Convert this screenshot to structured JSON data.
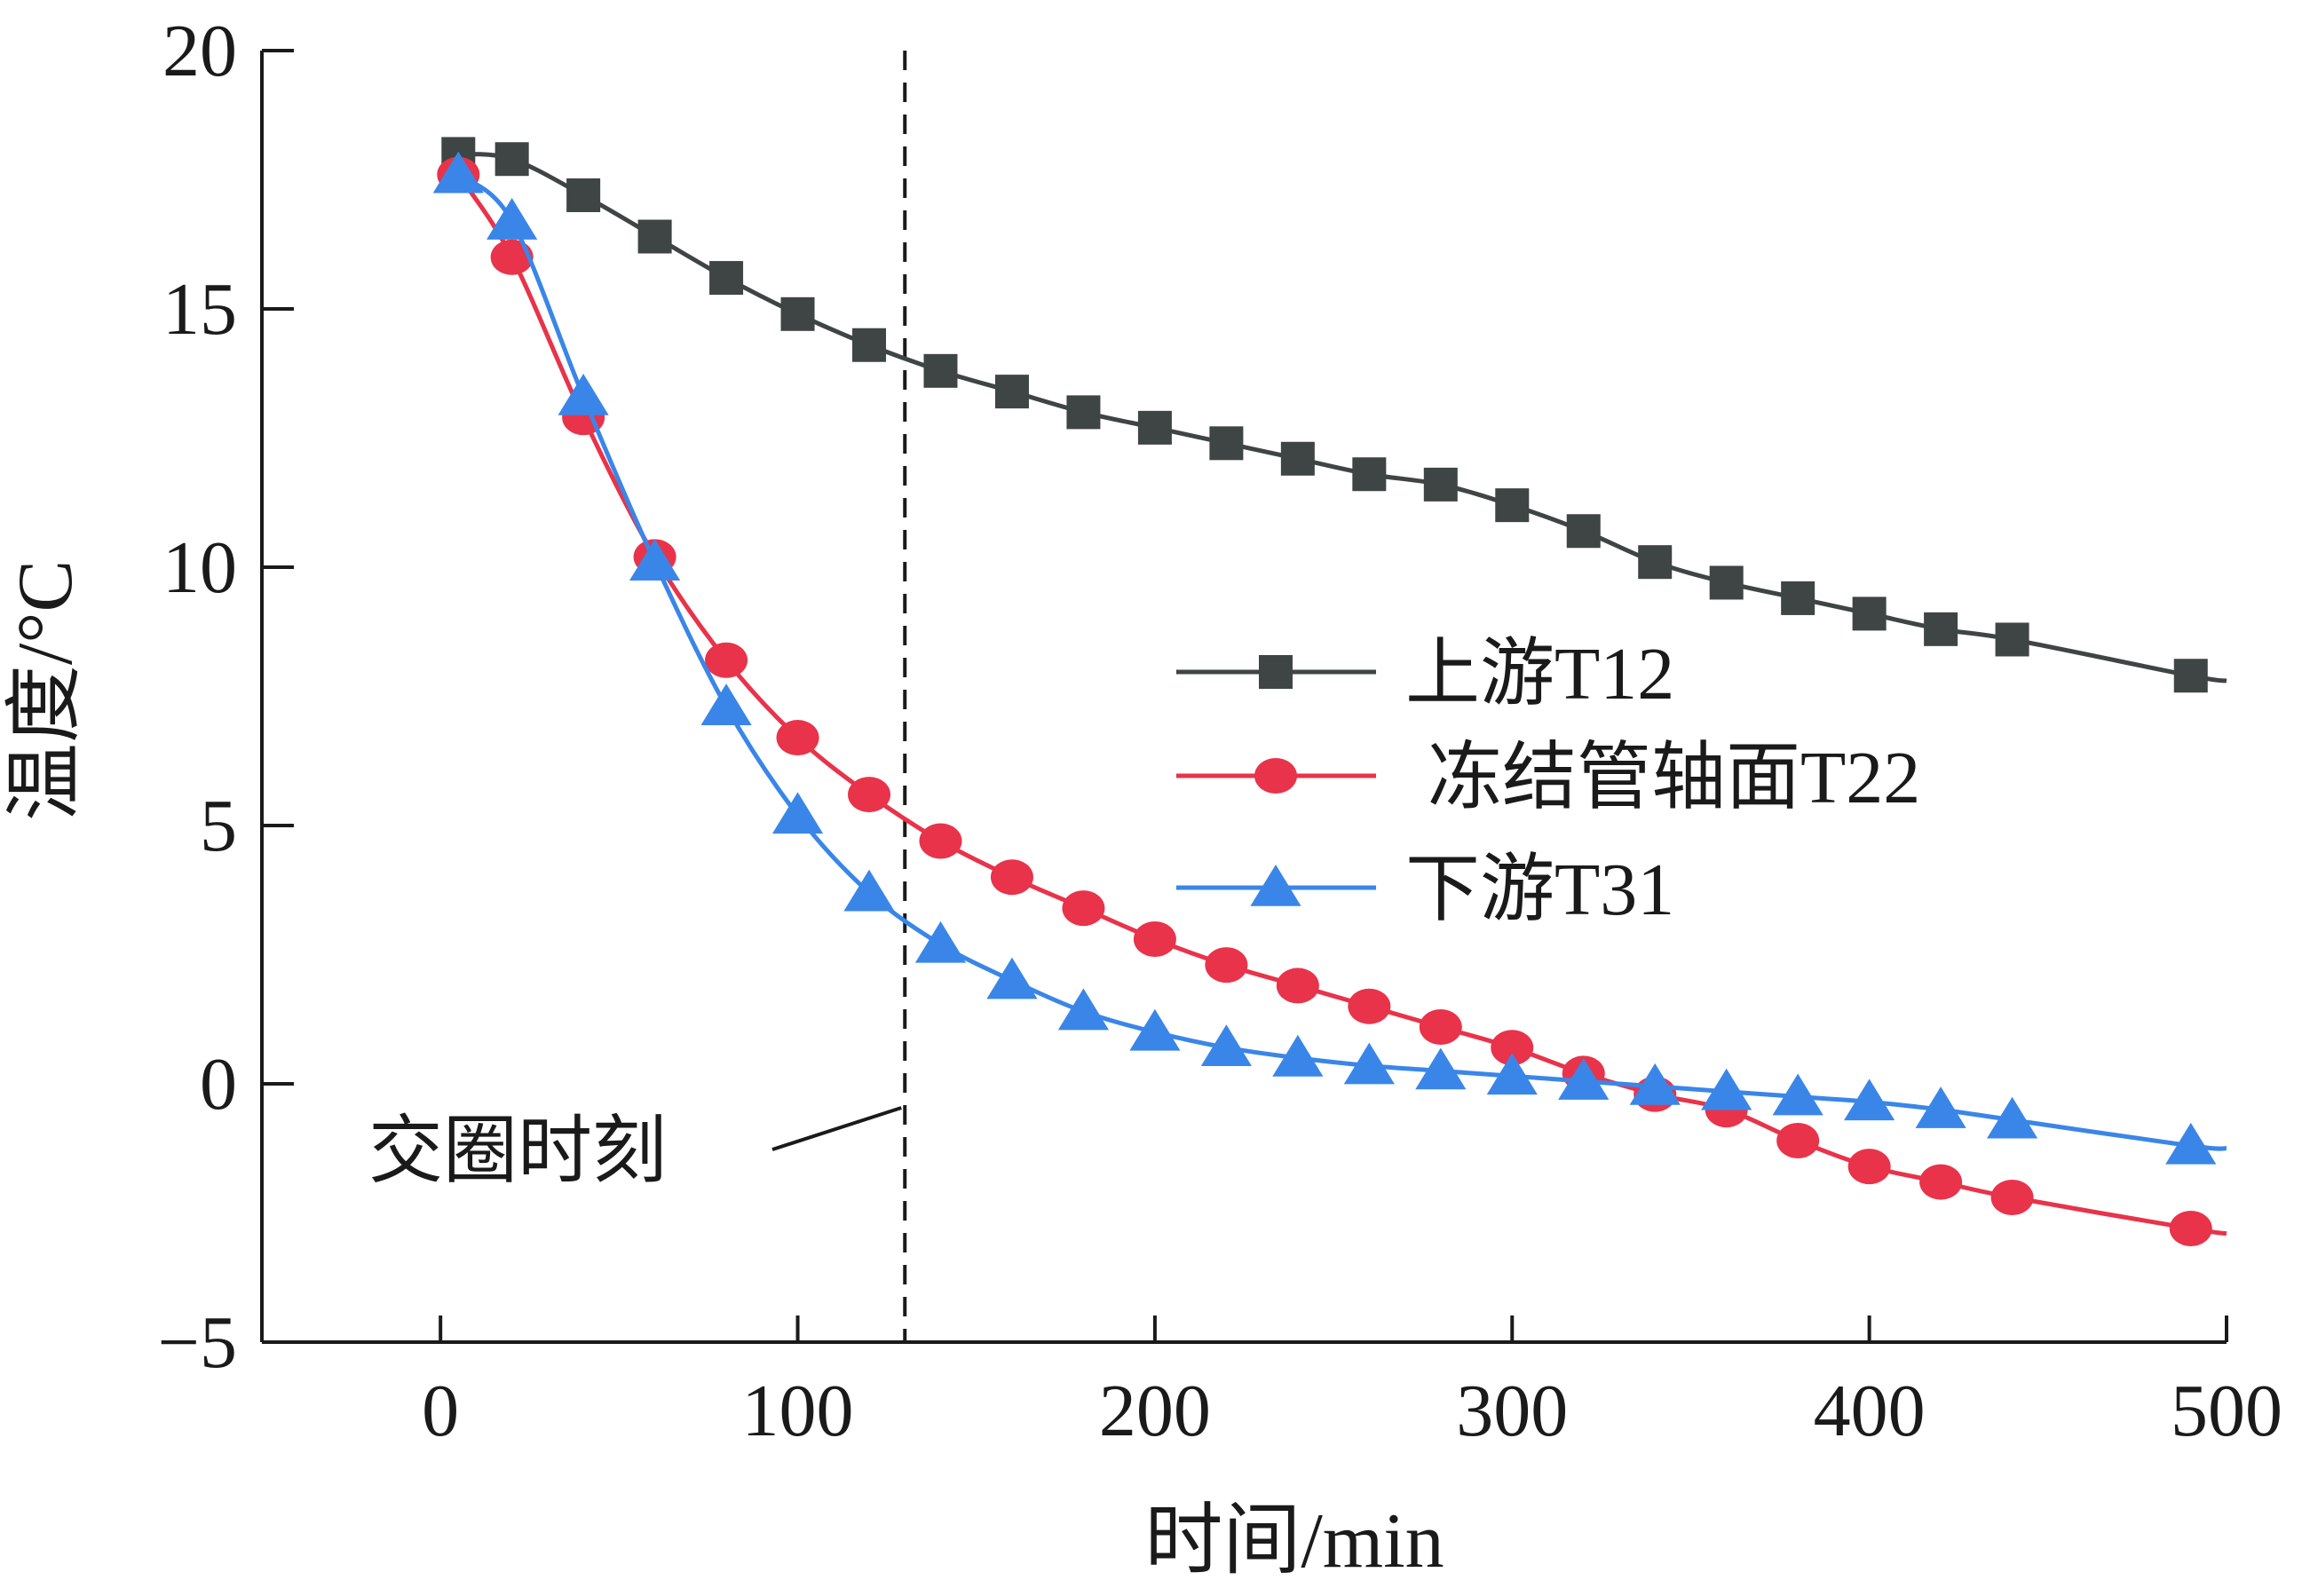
{
  "chart_data": {
    "type": "line",
    "xlabel": "时间/min",
    "ylabel": "温度/°C",
    "xlim": [
      -50,
      500
    ],
    "ylim": [
      -5,
      20
    ],
    "xticks": [
      0,
      100,
      200,
      300,
      400,
      500
    ],
    "yticks": [
      -5,
      0,
      5,
      10,
      15,
      20
    ],
    "ytick_labels": [
      "−5",
      "0",
      "5",
      "10",
      "15",
      "20"
    ],
    "grid": false,
    "legend_position": "right",
    "series": [
      {
        "name": "上游T12",
        "color": "#3f4444",
        "marker": "square",
        "x": [
          5,
          20,
          40,
          60,
          80,
          100,
          120,
          140,
          160,
          180,
          200,
          220,
          240,
          260,
          280,
          300,
          320,
          340,
          360,
          380,
          400,
          420,
          440,
          490,
          500
        ],
        "y": [
          18.0,
          17.9,
          17.2,
          16.4,
          15.6,
          14.9,
          14.3,
          13.8,
          13.4,
          13.0,
          12.7,
          12.4,
          12.1,
          11.8,
          11.6,
          11.2,
          10.7,
          10.1,
          9.7,
          9.4,
          9.1,
          8.8,
          8.6,
          7.9,
          7.8
        ],
        "marker_count": 24
      },
      {
        "name": "冻结管轴面T22",
        "color": "#e8334a",
        "marker": "circle",
        "x": [
          5,
          20,
          40,
          60,
          80,
          100,
          120,
          140,
          160,
          180,
          200,
          220,
          240,
          260,
          280,
          300,
          320,
          340,
          360,
          380,
          400,
          420,
          440,
          490,
          500
        ],
        "y": [
          17.6,
          16.0,
          12.9,
          10.2,
          8.2,
          6.7,
          5.6,
          4.7,
          4.0,
          3.4,
          2.8,
          2.3,
          1.9,
          1.5,
          1.1,
          0.7,
          0.2,
          -0.2,
          -0.5,
          -1.1,
          -1.6,
          -1.9,
          -2.2,
          -2.8,
          -2.9
        ],
        "marker_count": 24
      },
      {
        "name": "下游T31",
        "color": "#3a86e8",
        "marker": "triangle",
        "x": [
          5,
          20,
          40,
          60,
          80,
          100,
          120,
          140,
          160,
          180,
          200,
          220,
          240,
          260,
          280,
          300,
          320,
          340,
          360,
          380,
          400,
          420,
          440,
          490,
          500
        ],
        "y": [
          17.6,
          16.7,
          13.3,
          10.1,
          7.3,
          5.2,
          3.7,
          2.7,
          2.0,
          1.4,
          1.0,
          0.7,
          0.5,
          0.35,
          0.25,
          0.15,
          0.05,
          -0.05,
          -0.15,
          -0.25,
          -0.35,
          -0.5,
          -0.7,
          -1.2,
          -1.25
        ],
        "marker_count": 24
      }
    ],
    "annotations": [
      {
        "text": "交圈时刻",
        "x": 130,
        "style": "dashed-vertical-line"
      }
    ]
  }
}
